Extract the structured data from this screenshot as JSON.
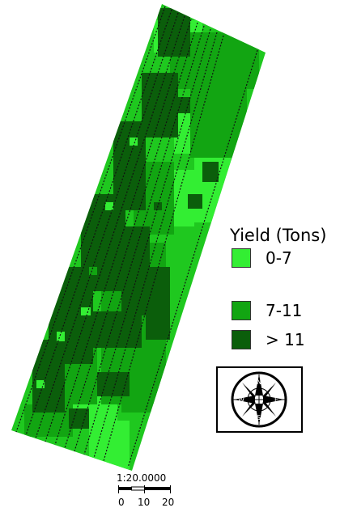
{
  "legend": {
    "title": "Yield (Tons)",
    "classes": [
      {
        "label": "0-7",
        "color": "#33ee33"
      },
      {
        "label": "7-11",
        "color": "#12a512"
      },
      {
        "label": "> 11",
        "color": "#0b5e0b"
      }
    ]
  },
  "compass": {
    "n": "N",
    "s": "S",
    "e": "E",
    "w": "W"
  },
  "scale": {
    "ratio": "1:20.0000",
    "ticks": [
      "0",
      "10",
      "20"
    ]
  }
}
